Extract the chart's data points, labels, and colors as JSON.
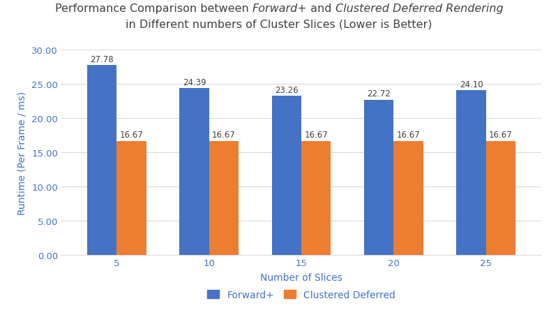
{
  "categories": [
    5,
    10,
    15,
    20,
    25
  ],
  "forward_plus": [
    27.78,
    24.39,
    23.26,
    22.72,
    24.1
  ],
  "clustered_deferred": [
    16.67,
    16.67,
    16.67,
    16.67,
    16.67
  ],
  "forward_plus_color": "#4472C4",
  "clustered_deferred_color": "#ED7D31",
  "title_line2": "in Different numbers of Cluster Slices (Lower is Better)",
  "xlabel": "Number of Slices",
  "ylabel": "Runtime (Per Frame / ms)",
  "ylim": [
    0,
    30
  ],
  "yticks": [
    0.0,
    5.0,
    10.0,
    15.0,
    20.0,
    25.0,
    30.0
  ],
  "legend_labels": [
    "Forward+",
    "Clustered Deferred"
  ],
  "bar_width": 0.32,
  "background_color": "#FFFFFF",
  "text_color": "#404040",
  "grid_color": "#D9D9D9",
  "axis_label_color": "#4472C4",
  "tick_color": "#4472C4",
  "title_fontsize": 11.5,
  "label_fontsize": 10,
  "tick_fontsize": 9.5,
  "annotation_fontsize": 8.5
}
